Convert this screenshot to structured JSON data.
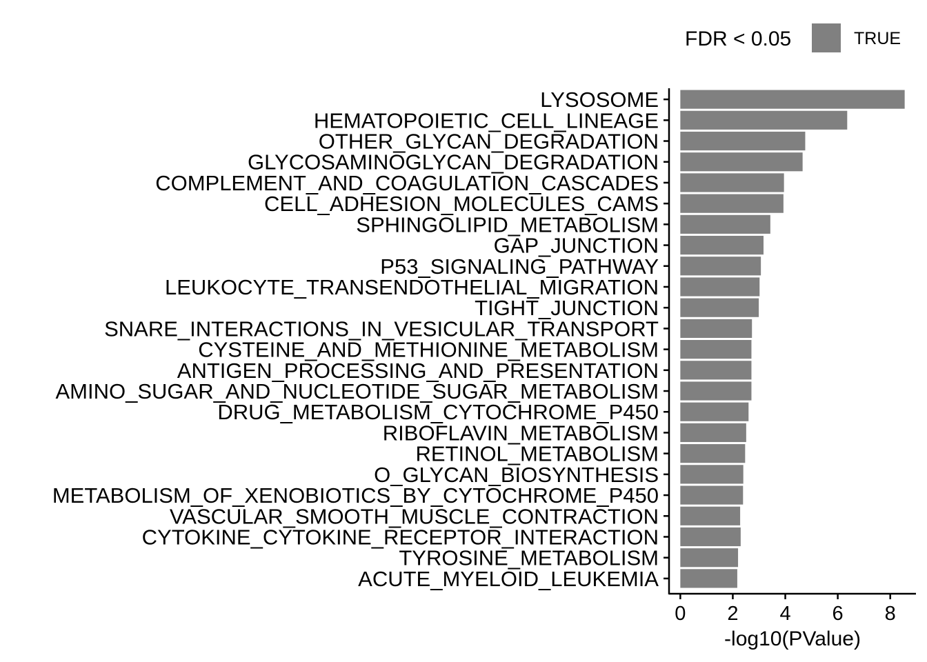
{
  "chart_data": {
    "type": "bar",
    "orientation": "horizontal",
    "categories": [
      "LYSOSOME",
      "HEMATOPOIETIC_CELL_LINEAGE",
      "OTHER_GLYCAN_DEGRADATION",
      "GLYCOSAMINOGLYCAN_DEGRADATION",
      "COMPLEMENT_AND_COAGULATION_CASCADES",
      "CELL_ADHESION_MOLECULES_CAMS",
      "SPHINGOLIPID_METABOLISM",
      "GAP_JUNCTION",
      "P53_SIGNALING_PATHWAY",
      "LEUKOCYTE_TRANSENDOTHELIAL_MIGRATION",
      "TIGHT_JUNCTION",
      "SNARE_INTERACTIONS_IN_VESICULAR_TRANSPORT",
      "CYSTEINE_AND_METHIONINE_METABOLISM",
      "ANTIGEN_PROCESSING_AND_PRESENTATION",
      "AMINO_SUGAR_AND_NUCLEOTIDE_SUGAR_METABOLISM",
      "DRUG_METABOLISM_CYTOCHROME_P450",
      "RIBOFLAVIN_METABOLISM",
      "RETINOL_METABOLISM",
      "O_GLYCAN_BIOSYNTHESIS",
      "METABOLISM_OF_XENOBIOTICS_BY_CYTOCHROME_P450",
      "VASCULAR_SMOOTH_MUSCLE_CONTRACTION",
      "CYTOKINE_CYTOKINE_RECEPTOR_INTERACTION",
      "TYROSINE_METABOLISM",
      "ACUTE_MYELOID_LEUKEMIA"
    ],
    "values": [
      8.55,
      6.36,
      4.76,
      4.66,
      3.95,
      3.93,
      3.43,
      3.17,
      3.07,
      3.02,
      2.99,
      2.73,
      2.71,
      2.71,
      2.71,
      2.6,
      2.51,
      2.47,
      2.4,
      2.39,
      2.28,
      2.3,
      2.2,
      2.17
    ],
    "xlabel": "-log10(PValue)",
    "ylabel": "",
    "xlim": [
      -0.43,
      8.98
    ],
    "xticks": [
      0,
      2,
      4,
      6,
      8
    ],
    "xtick_labels": [
      "0",
      "2",
      "4",
      "6",
      "8"
    ],
    "bar_color": "#808080",
    "grid": false,
    "legend": {
      "title": "FDR < 0.05",
      "position": "top-right",
      "entries": [
        {
          "label": "TRUE",
          "color": "#808080"
        }
      ]
    }
  }
}
